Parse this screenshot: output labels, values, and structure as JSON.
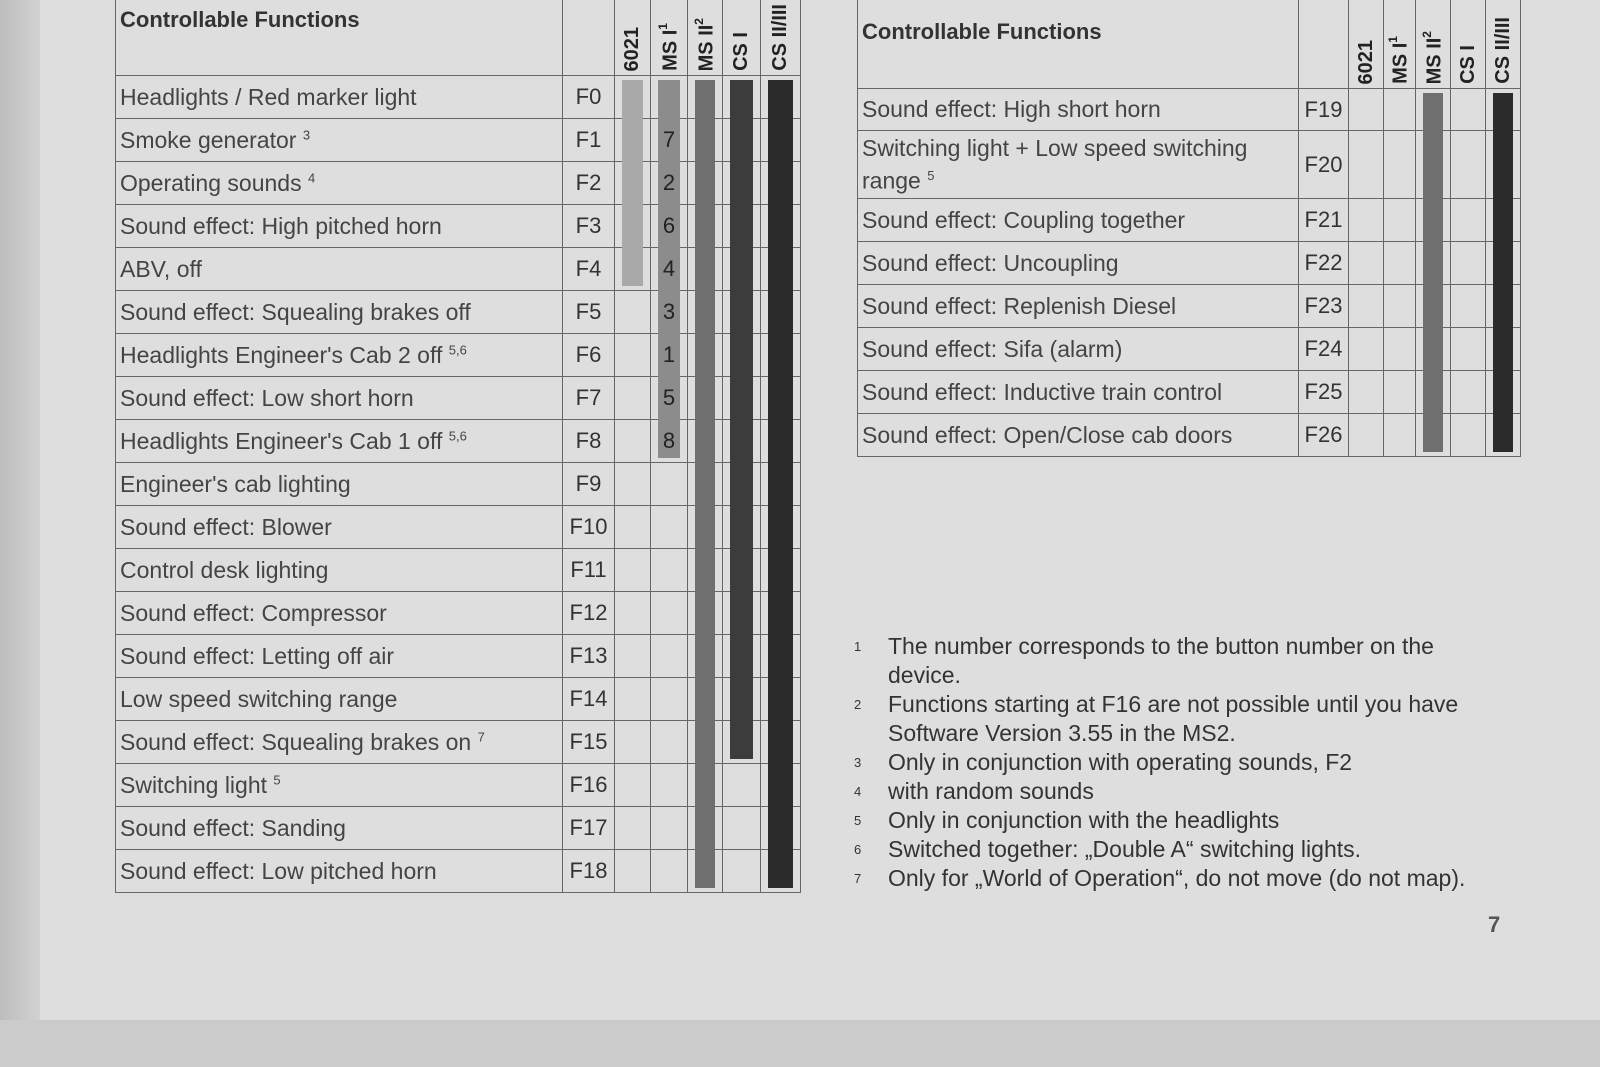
{
  "columns": [
    "6021",
    "MS I",
    "MS II",
    "CS I",
    "CS II/III"
  ],
  "column_sups": [
    "",
    "1",
    "2",
    "",
    ""
  ],
  "colors": {
    "6021": "#a9a9a9",
    "MS I": "#8c8c8c",
    "MS II": "#6f6f6f",
    "CS I": "#3c3c3c",
    "CS II/III": "#2b2b2b"
  },
  "left_table": {
    "title": "Controllable Functions",
    "rows": [
      {
        "name": "Headlights / Red marker light",
        "sup": "",
        "fn": "F0",
        "support": [
          1,
          1,
          1,
          1,
          1
        ],
        "ms1_button": ""
      },
      {
        "name": "Smoke generator",
        "sup": "3",
        "fn": "F1",
        "support": [
          1,
          1,
          1,
          1,
          1
        ],
        "ms1_button": "7"
      },
      {
        "name": "Operating sounds",
        "sup": "4",
        "fn": "F2",
        "support": [
          1,
          1,
          1,
          1,
          1
        ],
        "ms1_button": "2"
      },
      {
        "name": "Sound effect: High pitched horn",
        "sup": "",
        "fn": "F3",
        "support": [
          1,
          1,
          1,
          1,
          1
        ],
        "ms1_button": "6"
      },
      {
        "name": "ABV, off",
        "sup": "",
        "fn": "F4",
        "support": [
          1,
          1,
          1,
          1,
          1
        ],
        "ms1_button": "4"
      },
      {
        "name": "Sound effect: Squealing brakes off",
        "sup": "",
        "fn": "F5",
        "support": [
          0,
          1,
          1,
          1,
          1
        ],
        "ms1_button": "3"
      },
      {
        "name": "Headlights Engineer's Cab 2 off",
        "sup": "5,6",
        "fn": "F6",
        "support": [
          0,
          1,
          1,
          1,
          1
        ],
        "ms1_button": "1"
      },
      {
        "name": "Sound effect: Low short horn",
        "sup": "",
        "fn": "F7",
        "support": [
          0,
          1,
          1,
          1,
          1
        ],
        "ms1_button": "5"
      },
      {
        "name": "Headlights Engineer's Cab 1 off",
        "sup": "5,6",
        "fn": "F8",
        "support": [
          0,
          1,
          1,
          1,
          1
        ],
        "ms1_button": "8"
      },
      {
        "name": "Engineer's cab lighting",
        "sup": "",
        "fn": "F9",
        "support": [
          0,
          0,
          1,
          1,
          1
        ],
        "ms1_button": ""
      },
      {
        "name": "Sound effect: Blower",
        "sup": "",
        "fn": "F10",
        "support": [
          0,
          0,
          1,
          1,
          1
        ],
        "ms1_button": ""
      },
      {
        "name": "Control desk lighting",
        "sup": "",
        "fn": "F11",
        "support": [
          0,
          0,
          1,
          1,
          1
        ],
        "ms1_button": ""
      },
      {
        "name": "Sound effect: Compressor",
        "sup": "",
        "fn": "F12",
        "support": [
          0,
          0,
          1,
          1,
          1
        ],
        "ms1_button": ""
      },
      {
        "name": "Sound effect: Letting off air",
        "sup": "",
        "fn": "F13",
        "support": [
          0,
          0,
          1,
          1,
          1
        ],
        "ms1_button": ""
      },
      {
        "name": "Low speed switching range",
        "sup": "",
        "fn": "F14",
        "support": [
          0,
          0,
          1,
          1,
          1
        ],
        "ms1_button": ""
      },
      {
        "name": "Sound effect: Squealing brakes on",
        "sup": "7",
        "fn": "F15",
        "support": [
          0,
          0,
          1,
          1,
          1
        ],
        "ms1_button": ""
      },
      {
        "name": "Switching light",
        "sup": "5",
        "fn": "F16",
        "support": [
          0,
          0,
          1,
          0,
          1
        ],
        "ms1_button": ""
      },
      {
        "name": "Sound effect: Sanding",
        "sup": "",
        "fn": "F17",
        "support": [
          0,
          0,
          1,
          0,
          1
        ],
        "ms1_button": ""
      },
      {
        "name": "Sound effect: Low pitched horn",
        "sup": "",
        "fn": "F18",
        "support": [
          0,
          0,
          1,
          0,
          1
        ],
        "ms1_button": ""
      }
    ]
  },
  "right_table": {
    "title": "Controllable Functions",
    "rows": [
      {
        "name": "Sound effect: High short horn",
        "sup": "",
        "fn": "F19",
        "support": [
          0,
          0,
          1,
          0,
          1
        ],
        "ms1_button": ""
      },
      {
        "name": "Switching light + Low speed switching range",
        "sup": "5",
        "fn": "F20",
        "support": [
          0,
          0,
          1,
          0,
          1
        ],
        "ms1_button": ""
      },
      {
        "name": "Sound effect: Coupling together",
        "sup": "",
        "fn": "F21",
        "support": [
          0,
          0,
          1,
          0,
          1
        ],
        "ms1_button": ""
      },
      {
        "name": "Sound effect: Uncoupling",
        "sup": "",
        "fn": "F22",
        "support": [
          0,
          0,
          1,
          0,
          1
        ],
        "ms1_button": ""
      },
      {
        "name": "Sound effect: Replenish Diesel",
        "sup": "",
        "fn": "F23",
        "support": [
          0,
          0,
          1,
          0,
          1
        ],
        "ms1_button": ""
      },
      {
        "name": "Sound effect: Sifa (alarm)",
        "sup": "",
        "fn": "F24",
        "support": [
          0,
          0,
          1,
          0,
          1
        ],
        "ms1_button": ""
      },
      {
        "name": "Sound effect: Inductive train control",
        "sup": "",
        "fn": "F25",
        "support": [
          0,
          0,
          1,
          0,
          1
        ],
        "ms1_button": ""
      },
      {
        "name": "Sound effect: Open/Close cab doors",
        "sup": "",
        "fn": "F26",
        "support": [
          0,
          0,
          1,
          0,
          1
        ],
        "ms1_button": ""
      }
    ]
  },
  "footnotes": [
    {
      "n": "1",
      "text": "The number corresponds to the button number on the device."
    },
    {
      "n": "2",
      "text": "Functions starting at F16 are not possible until you have Software Version 3.55 in the MS2."
    },
    {
      "n": "3",
      "text": "Only in conjunction with operating sounds, F2"
    },
    {
      "n": "4",
      "text": "with random sounds"
    },
    {
      "n": "5",
      "text": "Only in conjunction with the headlights"
    },
    {
      "n": "6",
      "text": "Switched together: „Double A“ switching lights."
    },
    {
      "n": "7",
      "text": "Only for „World of Operation“, do not move (do not map)."
    }
  ],
  "page_number": "7"
}
